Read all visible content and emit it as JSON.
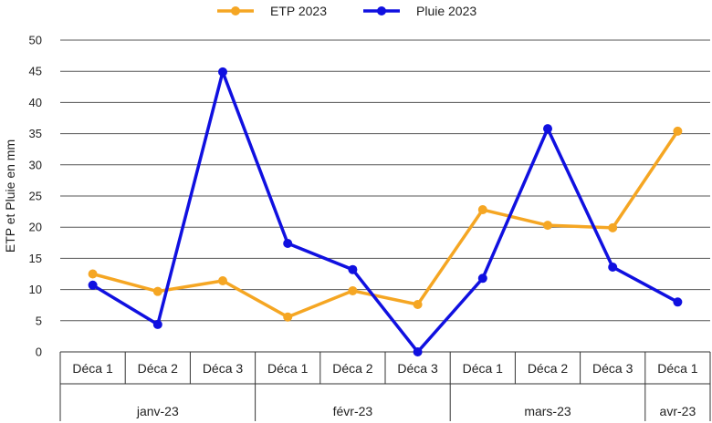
{
  "chart_data": {
    "type": "line",
    "ylabel": "ETP et Pluie en mm",
    "ylim": [
      0,
      50
    ],
    "yticks": [
      0,
      5,
      10,
      15,
      20,
      25,
      30,
      35,
      40,
      45,
      50
    ],
    "grid": true,
    "legend_position": "top-center",
    "categories": [
      "Déca 1",
      "Déca 2",
      "Déca 3",
      "Déca 1",
      "Déca 2",
      "Déca 3",
      "Déca 1",
      "Déca 2",
      "Déca 3",
      "Déca 1"
    ],
    "groups": [
      {
        "label": "janv-23",
        "count": 3
      },
      {
        "label": "févr-23",
        "count": 3
      },
      {
        "label": "mars-23",
        "count": 3
      },
      {
        "label": "avr-23",
        "count": 1
      }
    ],
    "series": [
      {
        "name": "ETP 2023",
        "color": "#F5A623",
        "values": [
          12.5,
          9.7,
          11.4,
          5.6,
          9.8,
          7.6,
          22.8,
          20.3,
          19.9,
          35.4
        ]
      },
      {
        "name": "Pluie 2023",
        "color": "#1010E0",
        "values": [
          10.7,
          4.4,
          44.9,
          17.4,
          13.2,
          0.0,
          11.8,
          35.8,
          13.6,
          8.0
        ]
      }
    ]
  }
}
